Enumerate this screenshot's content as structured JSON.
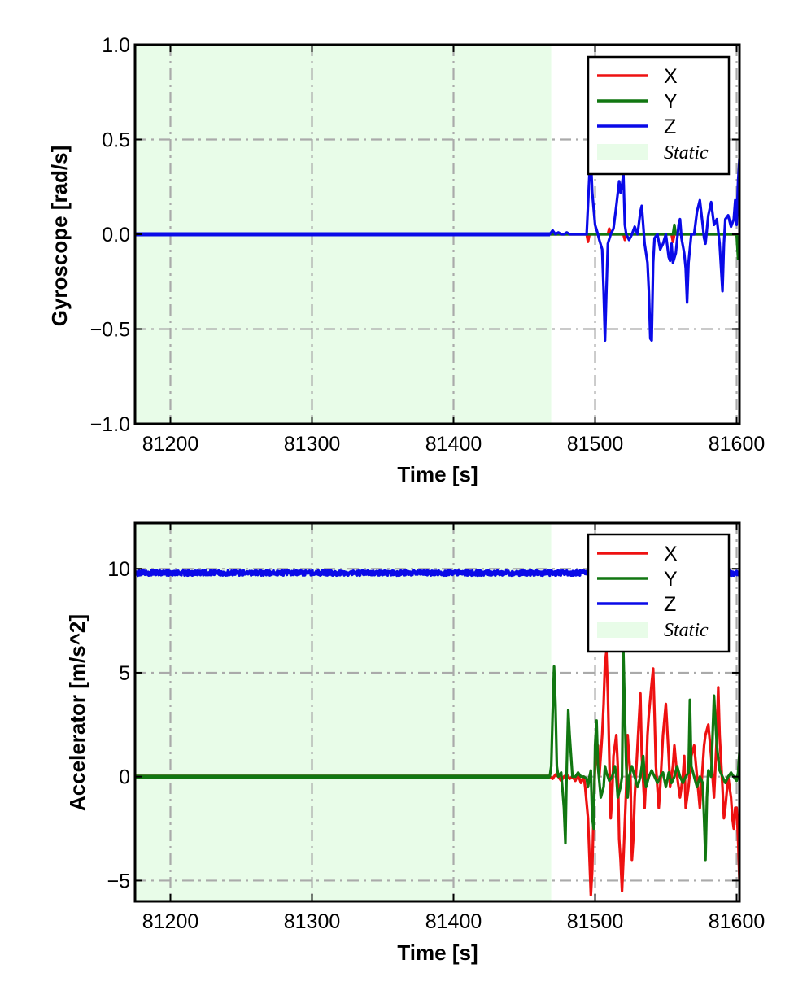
{
  "chart_data": [
    {
      "type": "line",
      "id": "gyro",
      "xlabel": "Time [s]",
      "ylabel": "Gyroscope [rad/s]",
      "xlim": [
        81175,
        81602
      ],
      "ylim": [
        -1.0,
        1.0
      ],
      "xticks": [
        81200,
        81300,
        81400,
        81500,
        81600
      ],
      "xtick_labels": [
        "81200",
        "81300",
        "81400",
        "81500",
        "81600"
      ],
      "yticks": [
        -1.0,
        -0.5,
        0.0,
        0.5,
        1.0
      ],
      "ytick_labels": [
        "−1.0",
        "−0.5",
        "0.0",
        "0.5",
        "1.0"
      ],
      "grid": true,
      "legend_position": "top-right",
      "static_region": {
        "label": "Static",
        "x0": 81175,
        "x1": 81469,
        "color": "#e8fce8"
      },
      "series": [
        {
          "name": "X",
          "color": "#ee1111",
          "x": [
            81175,
            81469,
            81494,
            81495,
            81496,
            81500,
            81509,
            81510,
            81511,
            81515,
            81520,
            81521,
            81522,
            81540,
            81554,
            81555,
            81556,
            81570,
            81600,
            81602
          ],
          "y": [
            0.0,
            0.0,
            0.0,
            -0.04,
            0.0,
            0.0,
            0.0,
            0.03,
            0.0,
            0.0,
            0.0,
            -0.03,
            0.0,
            0.0,
            0.0,
            -0.04,
            0.0,
            0.0,
            0.0,
            0.0
          ]
        },
        {
          "name": "Y",
          "color": "#117711",
          "x": [
            81175,
            81469,
            81500,
            81540,
            81555,
            81556,
            81557,
            81558,
            81570,
            81595,
            81600,
            81601,
            81602
          ],
          "y": [
            0.0,
            0.0,
            0.0,
            0.0,
            0.0,
            0.05,
            0.0,
            0.0,
            0.0,
            0.0,
            0.0,
            -0.13,
            0.0
          ]
        },
        {
          "name": "Z",
          "color": "#0a0ae8",
          "x": [
            81175,
            81468,
            81470,
            81472,
            81474,
            81476,
            81478,
            81480,
            81482,
            81494,
            81496,
            81497,
            81498,
            81500,
            81502,
            81503,
            81505,
            81506,
            81507,
            81508,
            81509,
            81511,
            81513,
            81515,
            81517,
            81518,
            81519,
            81520,
            81521,
            81522,
            81524,
            81526,
            81528,
            81530,
            81532,
            81533,
            81535,
            81537,
            81538,
            81539,
            81540,
            81541,
            81542,
            81544,
            81546,
            81548,
            81550,
            81552,
            81553,
            81554,
            81555,
            81557,
            81559,
            81560,
            81561,
            81563,
            81564,
            81565,
            81566,
            81568,
            81570,
            81572,
            81574,
            81576,
            81577,
            81578,
            81580,
            81582,
            81584,
            81586,
            81588,
            81589,
            81590,
            81591,
            81592,
            81594,
            81596,
            81598,
            81599,
            81600,
            81601,
            81602
          ],
          "y": [
            0.0,
            0.0,
            0.02,
            0.0,
            0.01,
            0.0,
            0.0,
            0.01,
            0.0,
            0.0,
            0.32,
            0.4,
            0.22,
            0.05,
            0.0,
            -0.03,
            -0.08,
            -0.3,
            -0.56,
            -0.3,
            -0.05,
            0.0,
            0.03,
            0.15,
            0.28,
            0.22,
            0.26,
            0.32,
            0.05,
            0.0,
            -0.03,
            0.0,
            0.04,
            0.0,
            0.12,
            0.15,
            -0.05,
            -0.15,
            -0.3,
            -0.55,
            -0.56,
            -0.15,
            -0.02,
            0.0,
            -0.08,
            -0.05,
            0.0,
            -0.12,
            -0.14,
            -0.05,
            -0.15,
            -0.1,
            0.05,
            0.08,
            -0.02,
            -0.1,
            -0.18,
            -0.36,
            -0.15,
            0.0,
            0.0,
            0.12,
            0.18,
            0.05,
            -0.02,
            -0.05,
            0.1,
            0.17,
            0.05,
            0.08,
            -0.05,
            -0.18,
            -0.3,
            -0.05,
            0.08,
            0.1,
            0.04,
            0.08,
            0.18,
            0.05,
            0.28,
            0.4
          ]
        }
      ]
    },
    {
      "type": "line",
      "id": "accel",
      "xlabel": "Time [s]",
      "ylabel": "Accelerator [m/s^2]",
      "xlim": [
        81175,
        81602
      ],
      "ylim": [
        -6,
        12.2
      ],
      "xticks": [
        81200,
        81300,
        81400,
        81500,
        81600
      ],
      "xtick_labels": [
        "81200",
        "81300",
        "81400",
        "81500",
        "81600"
      ],
      "yticks": [
        -5,
        0,
        5,
        10
      ],
      "ytick_labels": [
        "−5",
        "0",
        "5",
        "10"
      ],
      "grid": true,
      "legend_position": "top-right",
      "static_region": {
        "label": "Static",
        "x0": 81175,
        "x1": 81469,
        "color": "#e8fce8"
      },
      "series": [
        {
          "name": "X",
          "color": "#ee1111",
          "x": [
            81175,
            81468,
            81470,
            81472,
            81474,
            81476,
            81478,
            81480,
            81482,
            81484,
            81486,
            81488,
            81490,
            81492,
            81493,
            81495,
            81497,
            81498,
            81499,
            81500,
            81502,
            81503,
            81505,
            81506,
            81507,
            81508,
            81509,
            81510,
            81511,
            81512,
            81513,
            81515,
            81516,
            81517,
            81518,
            81519,
            81520,
            81522,
            81523,
            81525,
            81526,
            81527,
            81528,
            81530,
            81532,
            81533,
            81535,
            81536,
            81537,
            81538,
            81540,
            81541,
            81542,
            81543,
            81545,
            81546,
            81548,
            81550,
            81552,
            81553,
            81555,
            81556,
            81558,
            81560,
            81562,
            81563,
            81564,
            81566,
            81568,
            81570,
            81572,
            81574,
            81575,
            81576,
            81577,
            81578,
            81580,
            81582,
            81584,
            81586,
            81587,
            81588,
            81590,
            81591,
            81592,
            81594,
            81595,
            81596,
            81597,
            81598,
            81599,
            81600,
            81601,
            81602
          ],
          "y": [
            0.0,
            0.0,
            -0.1,
            0.1,
            0.0,
            -0.2,
            0.0,
            0.1,
            -0.1,
            0.0,
            -0.2,
            0.1,
            -0.3,
            0.0,
            -0.5,
            -2.0,
            -5.7,
            -4.5,
            -1.5,
            0.5,
            1.5,
            0.0,
            2.0,
            3.5,
            5.5,
            6.0,
            4.0,
            1.0,
            -2.0,
            -1.0,
            1.0,
            2.0,
            0.5,
            -3.0,
            -4.0,
            -5.5,
            -4.0,
            -0.5,
            2.0,
            0.0,
            -4.0,
            -3.0,
            -1.0,
            1.5,
            4.0,
            1.0,
            -1.5,
            0.0,
            2.0,
            3.0,
            4.5,
            5.2,
            3.0,
            0.5,
            -1.5,
            -0.5,
            2.0,
            3.5,
            1.0,
            -0.5,
            0.5,
            1.5,
            0.0,
            -1.0,
            0.0,
            1.0,
            -1.5,
            -0.5,
            1.0,
            1.5,
            0.0,
            -1.5,
            -0.5,
            0.5,
            1.5,
            2.0,
            2.5,
            1.0,
            -1.0,
            2.0,
            4.3,
            2.0,
            -0.5,
            -2.0,
            -1.5,
            0.0,
            -0.5,
            -1.0,
            -2.0,
            -2.5,
            -1.5,
            -1.5,
            -3.0,
            -5.0
          ]
        },
        {
          "name": "Y",
          "color": "#117711",
          "x": [
            81175,
            81468,
            81469,
            81470,
            81471,
            81472,
            81473,
            81474,
            81476,
            81478,
            81479,
            81480,
            81481,
            81482,
            81484,
            81486,
            81488,
            81490,
            81492,
            81494,
            81495,
            81496,
            81497,
            81498,
            81499,
            81500,
            81501,
            81502,
            81504,
            81506,
            81507,
            81508,
            81509,
            81510,
            81512,
            81514,
            81515,
            81516,
            81518,
            81519,
            81520,
            81521,
            81522,
            81523,
            81524,
            81526,
            81528,
            81530,
            81532,
            81533,
            81534,
            81535,
            81536,
            81538,
            81540,
            81542,
            81544,
            81546,
            81548,
            81550,
            81552,
            81554,
            81556,
            81558,
            81560,
            81562,
            81564,
            81566,
            81567,
            81568,
            81570,
            81572,
            81574,
            81576,
            81577,
            81578,
            81579,
            81580,
            81582,
            81584,
            81586,
            81588,
            81590,
            81592,
            81594,
            81596,
            81598,
            81600,
            81601,
            81602
          ],
          "y": [
            0.0,
            0.0,
            0.5,
            3.0,
            5.3,
            3.5,
            0.5,
            0.0,
            0.2,
            -1.5,
            -3.2,
            0.5,
            3.2,
            2.0,
            0.0,
            0.0,
            0.2,
            0.0,
            0.0,
            -0.1,
            -0.5,
            0.0,
            0.3,
            -2.0,
            -2.5,
            1.5,
            2.7,
            0.5,
            -1.0,
            -0.5,
            0.5,
            0.2,
            0.0,
            -0.2,
            0.0,
            0.5,
            0.0,
            -1.0,
            -0.5,
            0.0,
            6.0,
            3.0,
            0.5,
            -1.0,
            0.0,
            0.5,
            0.0,
            -0.5,
            0.0,
            0.5,
            1.0,
            0.0,
            -0.5,
            0.0,
            0.3,
            0.0,
            -0.3,
            0.0,
            0.2,
            -0.5,
            0.2,
            -0.3,
            0.0,
            0.5,
            0.0,
            -0.3,
            0.0,
            0.2,
            3.7,
            0.5,
            0.0,
            -0.5,
            0.0,
            -0.3,
            -2.0,
            -4.0,
            -1.0,
            0.3,
            0.0,
            3.9,
            1.5,
            0.3,
            0.0,
            -0.3,
            0.0,
            0.2,
            0.0,
            -0.2,
            0.2,
            1.2
          ]
        },
        {
          "name": "Z",
          "color": "#0a0ae8",
          "base": 9.8,
          "noise": 0.12,
          "x": [
            81175,
            81494,
            81496,
            81497,
            81498,
            81499,
            81600,
            81602
          ],
          "y": [
            9.8,
            9.8,
            9.8,
            9.6,
            9.8,
            9.8,
            9.8,
            9.8
          ]
        }
      ]
    }
  ]
}
